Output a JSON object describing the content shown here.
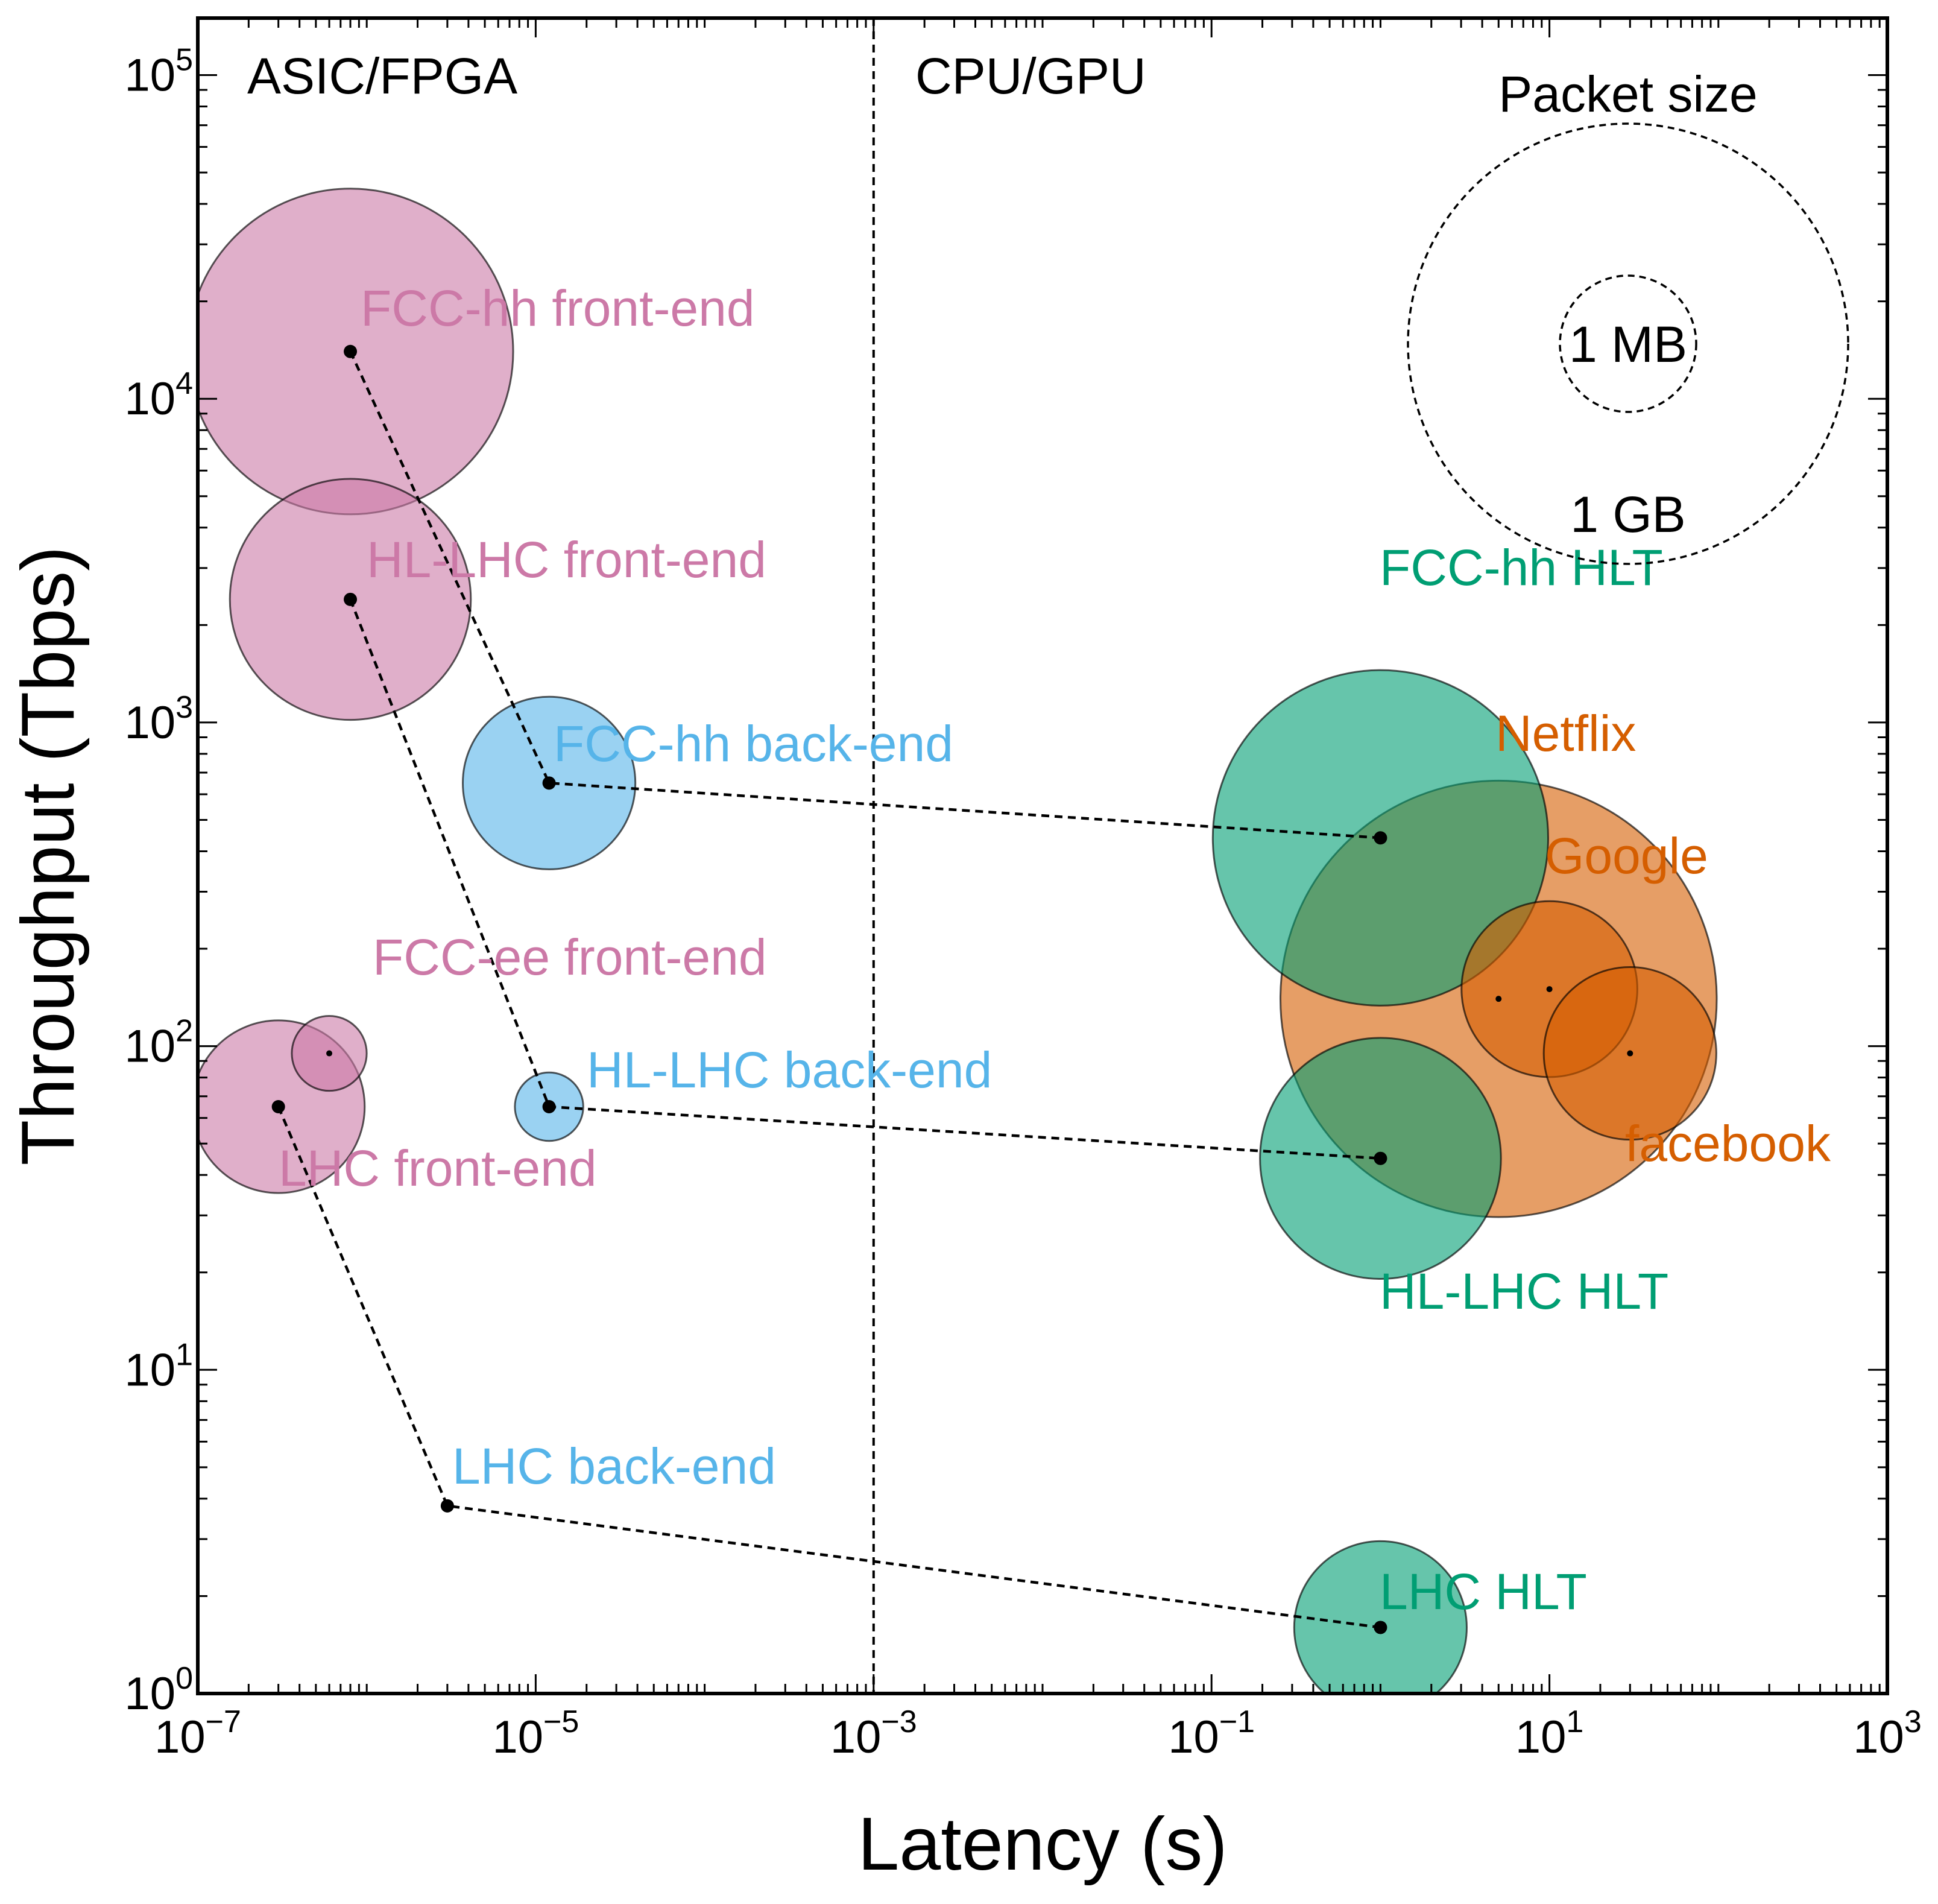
{
  "chart_data": {
    "type": "scatter",
    "subtype": "bubble",
    "xlabel": "Latency (s)",
    "ylabel": "Throughput (Tbps)",
    "xscale": "log",
    "yscale": "log",
    "xlim": [
      1e-07,
      1000
    ],
    "ylim": [
      1,
      150000
    ],
    "x_ticks": [
      {
        "value": 1e-07,
        "base": "10",
        "exp": "−7"
      },
      {
        "value": 1e-05,
        "base": "10",
        "exp": "−5"
      },
      {
        "value": 0.001,
        "base": "10",
        "exp": "−3"
      },
      {
        "value": 0.1,
        "base": "10",
        "exp": "−1"
      },
      {
        "value": 10,
        "base": "10",
        "exp": "1"
      },
      {
        "value": 1000,
        "base": "10",
        "exp": "3"
      }
    ],
    "y_ticks": [
      {
        "value": 1,
        "base": "10",
        "exp": "0"
      },
      {
        "value": 10,
        "base": "10",
        "exp": "1"
      },
      {
        "value": 100,
        "base": "10",
        "exp": "2"
      },
      {
        "value": 1000,
        "base": "10",
        "exp": "3"
      },
      {
        "value": 10000,
        "base": "10",
        "exp": "4"
      },
      {
        "value": 100000,
        "base": "10",
        "exp": "5"
      }
    ],
    "grid": false,
    "colors": {
      "front_end": "#cc79a7",
      "back_end": "#56b4e9",
      "hlt": "#009e73",
      "industry": "#d55e00"
    },
    "regions": {
      "divider_x": 0.001,
      "left_label": "ASIC/FPGA",
      "right_label": "CPU/GPU"
    },
    "size_legend": {
      "title": "Packet size",
      "items": [
        "1 MB",
        "1 GB"
      ]
    },
    "points": [
      {
        "label": "FCC-hh front-end",
        "x": 8e-07,
        "y": 14000,
        "size_rel": 1.0,
        "group": "front_end"
      },
      {
        "label": "HL-LHC front-end",
        "x": 8e-07,
        "y": 2400,
        "size_rel": 0.74,
        "group": "front_end"
      },
      {
        "label": "FCC-ee front-end",
        "x": 6e-07,
        "y": 95,
        "size_rel": 0.23,
        "group": "front_end"
      },
      {
        "label": "LHC front-end",
        "x": 3e-07,
        "y": 65,
        "size_rel": 0.53,
        "group": "front_end"
      },
      {
        "label": "FCC-hh back-end",
        "x": 1.2e-05,
        "y": 650,
        "size_rel": 0.53,
        "group": "back_end"
      },
      {
        "label": "HL-LHC back-end",
        "x": 1.2e-05,
        "y": 65,
        "size_rel": 0.21,
        "group": "back_end"
      },
      {
        "label": "LHC back-end",
        "x": 3e-06,
        "y": 3.8,
        "size_rel": 0.03,
        "group": "back_end"
      },
      {
        "label": "FCC-hh HLT",
        "x": 1,
        "y": 440,
        "size_rel": 1.03,
        "group": "hlt"
      },
      {
        "label": "HL-LHC HLT",
        "x": 1,
        "y": 45,
        "size_rel": 0.74,
        "group": "hlt"
      },
      {
        "label": "LHC HLT",
        "x": 1,
        "y": 1.6,
        "size_rel": 0.53,
        "group": "hlt"
      },
      {
        "label": "Netflix",
        "x": 5,
        "y": 140,
        "size_rel": 1.34,
        "group": "industry"
      },
      {
        "label": "Google",
        "x": 10,
        "y": 150,
        "size_rel": 0.54,
        "group": "industry"
      },
      {
        "label": "facebook",
        "x": 30,
        "y": 95,
        "size_rel": 0.53,
        "group": "industry"
      }
    ],
    "links": [
      [
        "FCC-hh front-end",
        "FCC-hh back-end",
        "FCC-hh HLT"
      ],
      [
        "HL-LHC front-end",
        "HL-LHC back-end",
        "HL-LHC HLT"
      ],
      [
        "LHC front-end",
        "LHC back-end",
        "LHC HLT"
      ]
    ]
  }
}
